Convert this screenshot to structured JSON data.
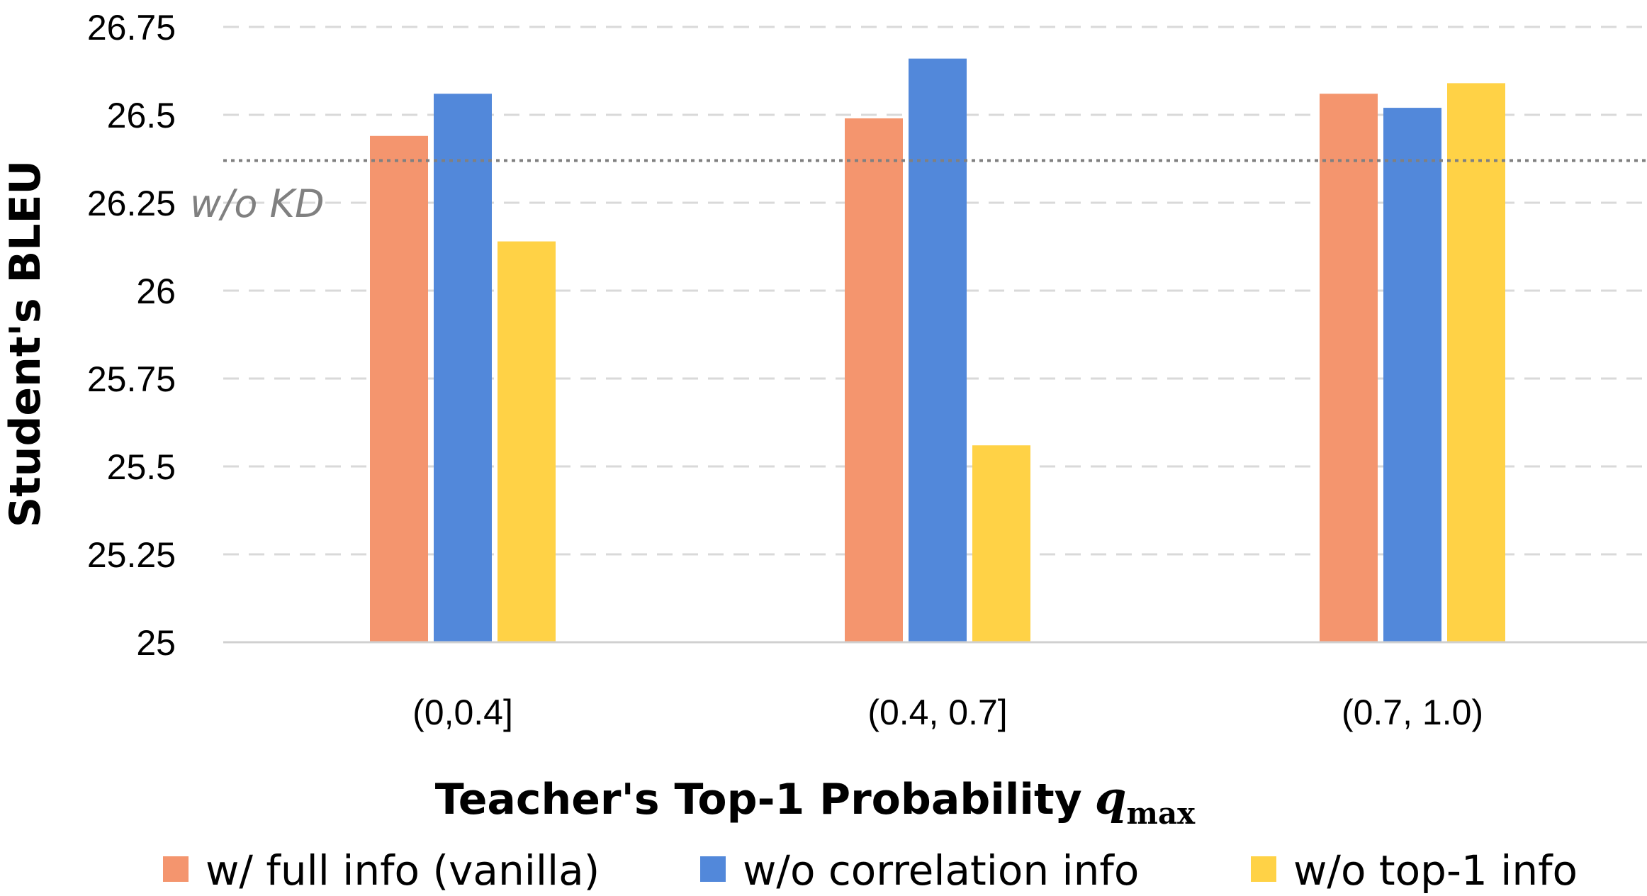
{
  "chart_data": {
    "type": "bar",
    "title": "",
    "xlabel": "Teacher's Top-1 Probability",
    "xlabel_math": {
      "base": "q",
      "subscript": "max"
    },
    "ylabel": "Student's BLEU",
    "ylim": [
      25,
      26.75
    ],
    "yticks": [
      "25",
      "25.25",
      "25.5",
      "25.75",
      "26",
      "26.25",
      "26.5",
      "26.75"
    ],
    "grid": "horizontal dashed",
    "legend_position": "bottom",
    "categories": [
      "(0,0.4]",
      "(0.4, 0.7]",
      "(0.7, 1.0)"
    ],
    "series": [
      {
        "name": "w/ full info (vanilla)",
        "color": "#F4956E",
        "values": [
          26.44,
          26.49,
          26.56
        ]
      },
      {
        "name": "w/o correlation info",
        "color": "#5288DA",
        "values": [
          26.56,
          26.66,
          26.52
        ]
      },
      {
        "name": "w/o top-1 info",
        "color": "#FFD246",
        "values": [
          26.14,
          25.56,
          26.59
        ]
      }
    ],
    "reference_line": {
      "label": "w/o KD",
      "value": 26.37,
      "style": "dotted",
      "color": "#808080"
    }
  }
}
